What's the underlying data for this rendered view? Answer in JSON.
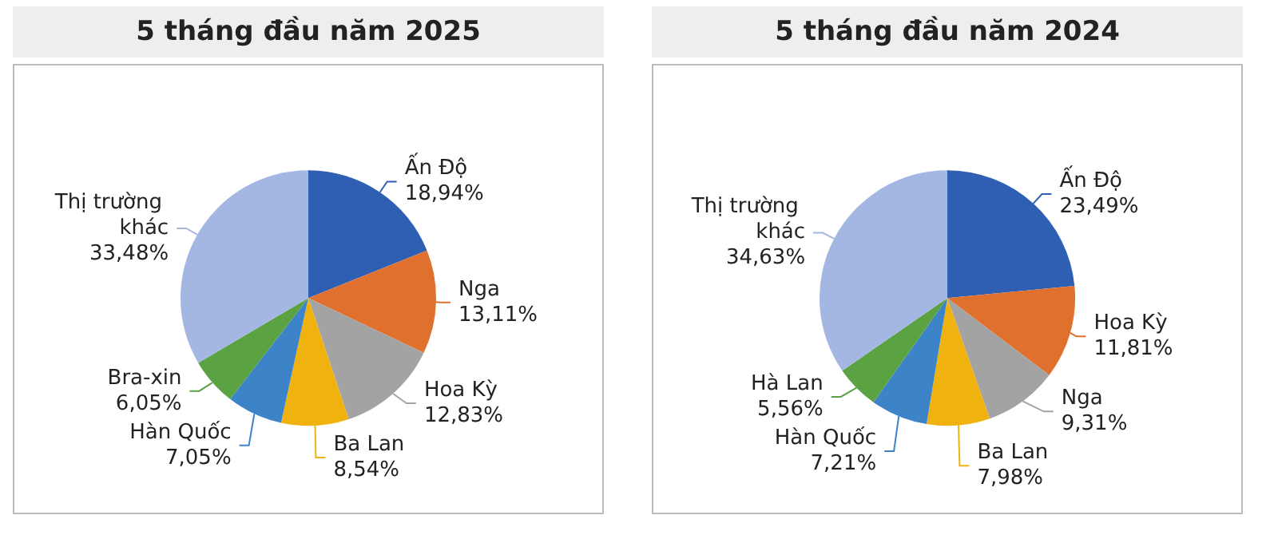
{
  "chart_data": [
    {
      "type": "pie",
      "title": "5 tháng đầu năm 2025",
      "categories": [
        "Ấn Độ",
        "Nga",
        "Hoa Kỳ",
        "Ba Lan",
        "Hàn Quốc",
        "Bra-xin",
        "Thị trường khác"
      ],
      "values": [
        18.94,
        13.11,
        12.83,
        8.54,
        7.05,
        6.05,
        33.48
      ],
      "value_labels": [
        "18,94%",
        "13,11%",
        "12,83%",
        "8,54%",
        "7,05%",
        "6,05%",
        "33,48%"
      ],
      "colors": [
        "#2f5fb3",
        "#e0702e",
        "#a3a3a3",
        "#f0b20f",
        "#3d83c8",
        "#5ba243",
        "#a4b6e2"
      ],
      "legend": false
    },
    {
      "type": "pie",
      "title": "5 tháng đầu năm 2024",
      "categories": [
        "Ấn Độ",
        "Hoa Kỳ",
        "Nga",
        "Ba Lan",
        "Hàn Quốc",
        "Hà Lan",
        "Thị trường khác"
      ],
      "values": [
        23.49,
        11.81,
        9.31,
        7.98,
        7.21,
        5.56,
        34.63
      ],
      "value_labels": [
        "23,49%",
        "11,81%",
        "9,31%",
        "7,98%",
        "7,21%",
        "5,56%",
        "34,63%"
      ],
      "colors": [
        "#2f5fb3",
        "#e0702e",
        "#a3a3a3",
        "#f0b20f",
        "#3d83c8",
        "#5ba243",
        "#a4b6e2"
      ],
      "legend": false
    }
  ]
}
